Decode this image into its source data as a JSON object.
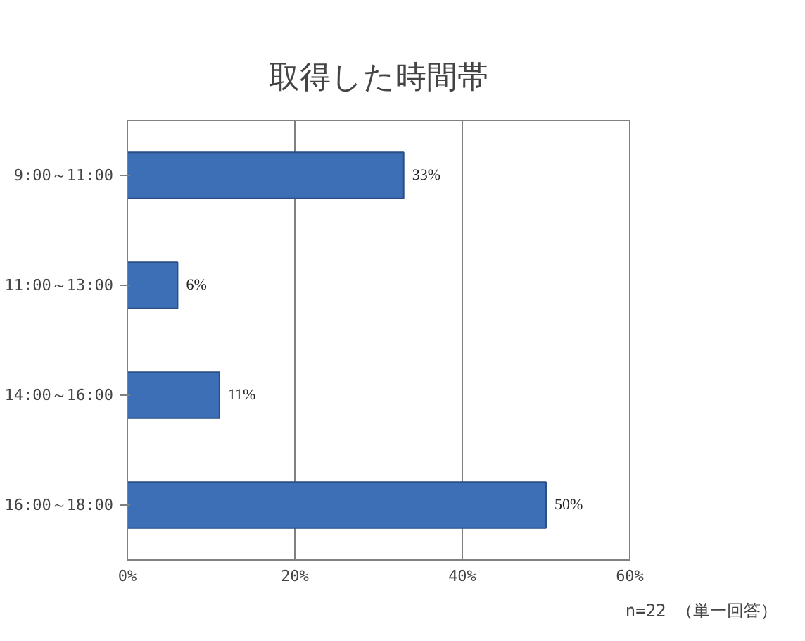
{
  "chart_data": {
    "type": "bar",
    "orientation": "horizontal",
    "title": "取得した時間帯",
    "categories": [
      "9:00～11:00",
      "11:00～13:00",
      "14:00～16:00",
      "16:00～18:00"
    ],
    "values": [
      33,
      6,
      11,
      50
    ],
    "value_labels": [
      "33%",
      "6%",
      "11%",
      "50%"
    ],
    "color": "#3d6fb6",
    "xlim": [
      0,
      60
    ],
    "xticks": [
      {
        "value": 0,
        "label": "0%"
      },
      {
        "value": 20,
        "label": "20%"
      },
      {
        "value": 40,
        "label": "40%"
      },
      {
        "value": 60,
        "label": "60%"
      }
    ],
    "grid": "x",
    "annotations": [
      "n=22 （単一回答）"
    ]
  }
}
